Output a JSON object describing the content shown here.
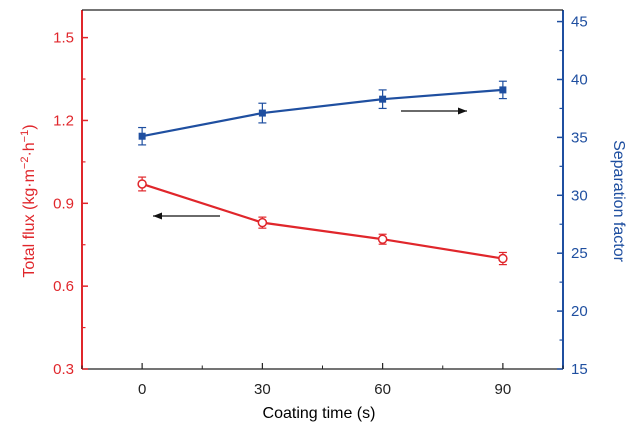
{
  "chart_data": {
    "type": "line",
    "xlabel": "Coating time (s)",
    "ylabel_left_main": "Total flux (kg·m",
    "ylabel_left_sup1": "−2",
    "ylabel_left_mid": "·h",
    "ylabel_left_sup2": "−1",
    "ylabel_left_end": ")",
    "ylabel_right": "Separation factor",
    "x": [
      0,
      30,
      60,
      90
    ],
    "x_ticks": [
      "0",
      "30",
      "60",
      "90"
    ],
    "xlim": [
      -15,
      105
    ],
    "ylim_left": [
      0.3,
      1.6
    ],
    "ylim_right": [
      15,
      46
    ],
    "y_left_ticks": [
      "0.3",
      "0.6",
      "0.9",
      "1.2",
      "1.5"
    ],
    "y_right_ticks": [
      "15",
      "20",
      "25",
      "30",
      "35",
      "40",
      "45"
    ],
    "series": [
      {
        "axis": "left",
        "color": "#e0262b",
        "marker": "open-circle",
        "values": [
          0.97,
          0.83,
          0.77,
          0.7
        ],
        "errors": [
          0.025,
          0.02,
          0.018,
          0.022
        ]
      },
      {
        "axis": "right",
        "color": "#1f4fa0",
        "marker": "filled-square",
        "values": [
          35.1,
          37.1,
          38.3,
          39.1
        ],
        "errors": [
          0.75,
          0.85,
          0.8,
          0.75
        ]
      }
    ],
    "annotations": [
      {
        "type": "arrow",
        "direction": "left",
        "target": "left-axis"
      },
      {
        "type": "arrow",
        "direction": "right",
        "target": "right-axis"
      }
    ],
    "grid": false,
    "legend": "none"
  }
}
